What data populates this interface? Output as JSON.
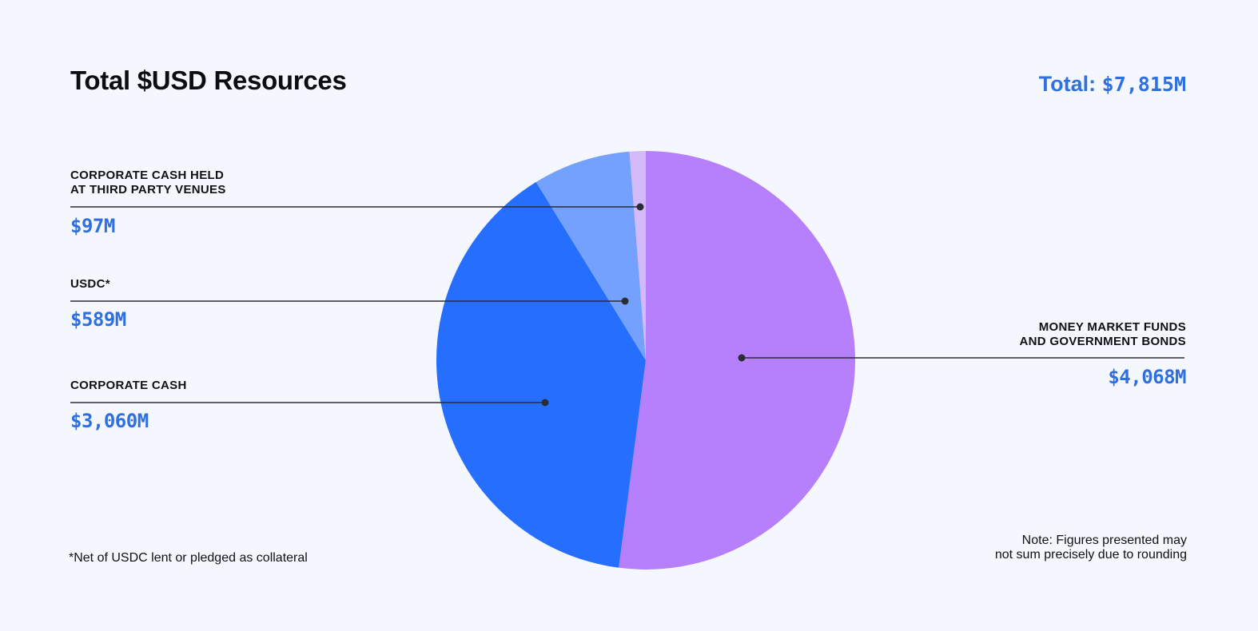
{
  "chart_data": {
    "type": "pie",
    "title": "Total $USD Resources",
    "total_label": "Total:",
    "total_value": "$7,815M",
    "slices": [
      {
        "label": "MONEY MARKET FUNDS\nAND GOVERNMENT BONDS",
        "value": 4068,
        "display": "$4,068M",
        "color": "#b680fd"
      },
      {
        "label": "CORPORATE CASH",
        "value": 3060,
        "display": "$3,060M",
        "color": "#256efe"
      },
      {
        "label": "USDC*",
        "value": 589,
        "display": "$589M",
        "color": "#73a1fd"
      },
      {
        "label": "CORPORATE CASH HELD\nAT THIRD PARTY VENUES",
        "value": 97,
        "display": "$97M",
        "color": "#d4b9fb"
      }
    ],
    "legend": "none"
  },
  "footnote": "*Net of USDC lent or pledged as collateral",
  "note": "Note: Figures presented may\nnot sum precisely due to rounding",
  "colors": {
    "background": "#f4f7fd",
    "accent": "#2f6fe0",
    "leader_line": "#2b2d36"
  }
}
